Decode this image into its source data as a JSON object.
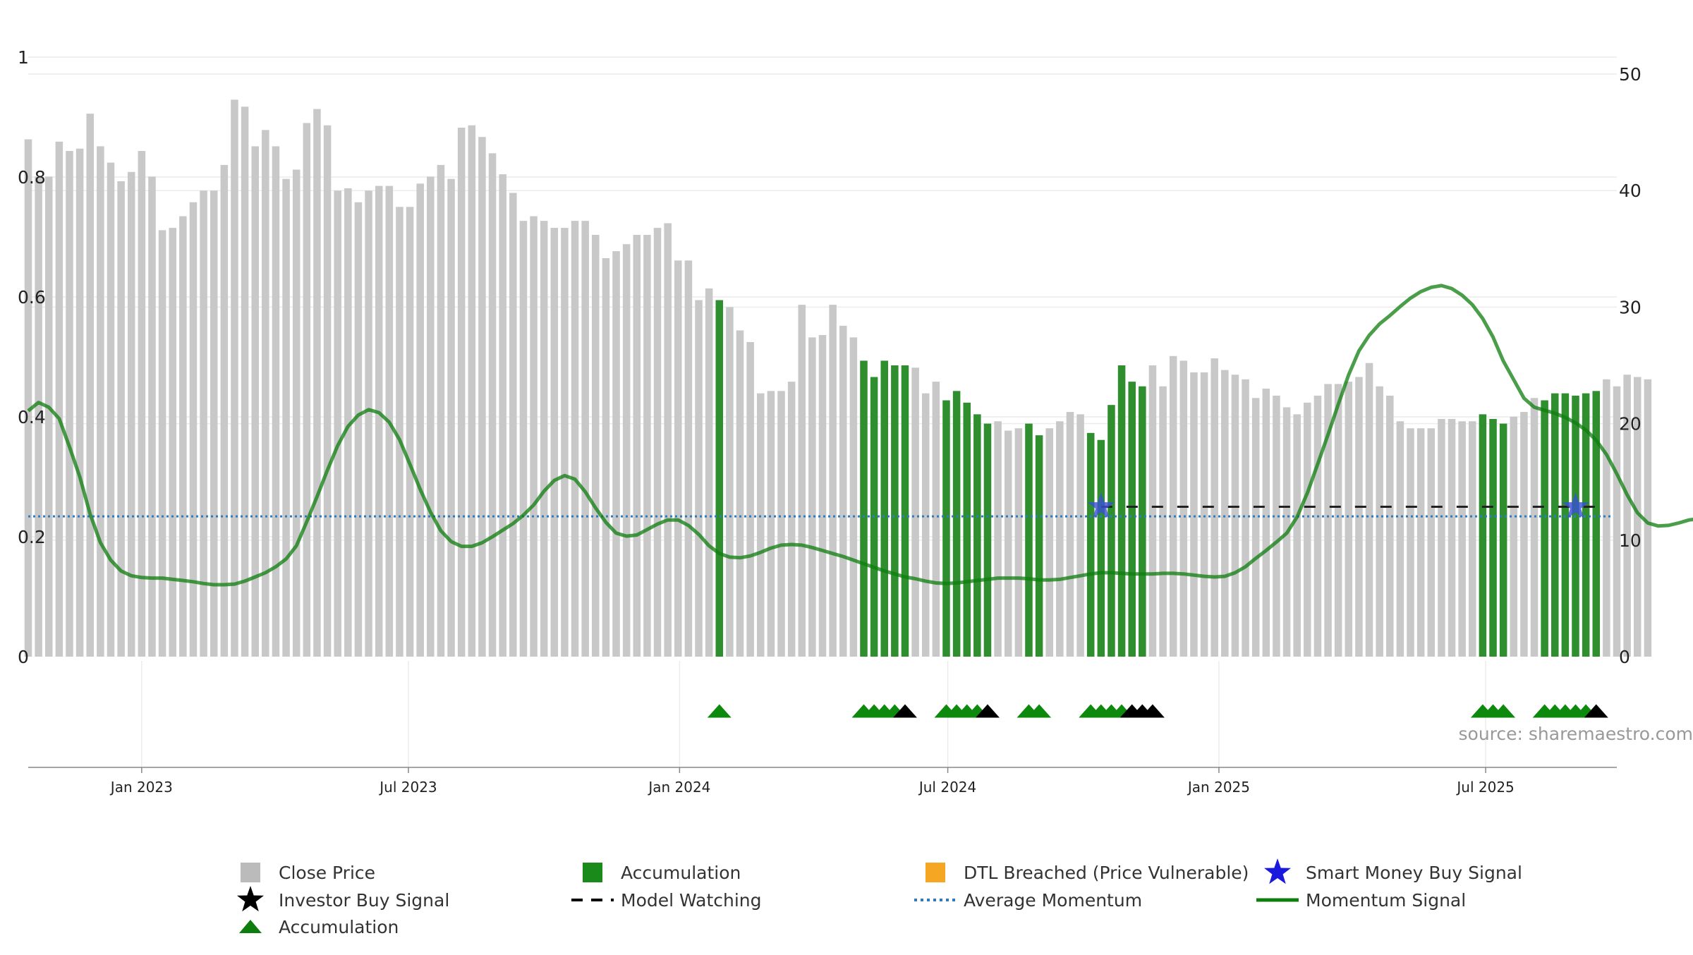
{
  "chart_data": {
    "type": "bar",
    "source_note": "source: sharemaestro.com",
    "left_axis": {
      "ylim": [
        0,
        1
      ],
      "ticks": [
        0,
        0.2,
        0.4,
        0.6,
        0.8,
        1
      ],
      "tick_labels": [
        "0",
        "0.2",
        "0.4",
        "0.6",
        "0.8",
        "1"
      ]
    },
    "right_axis": {
      "ylim": [
        0,
        50
      ],
      "ticks": [
        0,
        10,
        20,
        30,
        40,
        50
      ],
      "tick_labels": [
        "0",
        "10",
        "20",
        "30",
        "40",
        "50"
      ]
    },
    "x_ticks": [
      "Jan 2023",
      "Jul 2023",
      "Jan 2024",
      "Jul 2024",
      "Jan 2025",
      "Jul 2025"
    ],
    "x_tick_dates": [
      "2023-01-01",
      "2023-07-01",
      "2024-01-01",
      "2024-07-01",
      "2025-01-01",
      "2025-07-01"
    ],
    "x_range": [
      "2022-10-16",
      "2025-09-28"
    ],
    "bar_interval_days": 7,
    "bar_start": "2022-10-16",
    "close_price": [
      44.4,
      41.2,
      41.2,
      44.2,
      43.4,
      43.6,
      46.6,
      43.8,
      42.4,
      40.8,
      41.6,
      43.4,
      41.2,
      36.6,
      36.8,
      37.8,
      39.0,
      40.0,
      40.0,
      42.2,
      47.8,
      47.2,
      43.8,
      45.2,
      43.8,
      41.0,
      41.8,
      45.8,
      47.0,
      45.6,
      40.0,
      40.2,
      39.0,
      40.0,
      40.4,
      40.4,
      38.6,
      38.6,
      40.6,
      41.2,
      42.2,
      41.0,
      45.4,
      45.6,
      44.6,
      43.2,
      41.4,
      39.8,
      37.4,
      37.8,
      37.4,
      36.8,
      36.8,
      37.4,
      37.4,
      36.2,
      34.2,
      34.8,
      35.4,
      36.2,
      36.2,
      36.8,
      37.2,
      34.0,
      34.0,
      30.6,
      31.6,
      30.6,
      30.0,
      28.0,
      27.0,
      22.6,
      22.8,
      22.8,
      23.6,
      30.2,
      27.4,
      27.6,
      30.2,
      28.4,
      27.4,
      25.4,
      24.0,
      25.4,
      25.0,
      25.0,
      24.8,
      22.6,
      23.6,
      22.0,
      22.8,
      21.8,
      20.8,
      20.0,
      20.2,
      19.4,
      19.6,
      20.0,
      19.0,
      19.6,
      20.2,
      21.0,
      20.8,
      19.2,
      18.6,
      21.6,
      25.0,
      23.6,
      23.2,
      25.0,
      23.2,
      25.8,
      25.4,
      24.4,
      24.4,
      25.6,
      24.6,
      24.2,
      23.8,
      22.2,
      23.0,
      22.4,
      21.4,
      20.8,
      21.8,
      22.4,
      23.4,
      23.4,
      23.6,
      24.0,
      25.2,
      23.2,
      22.4,
      20.2,
      19.6,
      19.6,
      19.6,
      20.4,
      20.4,
      20.2,
      20.2,
      20.8,
      20.4,
      20.0,
      20.6,
      21.0,
      22.2,
      22.0,
      22.6,
      22.6,
      22.4,
      22.6,
      22.8,
      23.8,
      23.2,
      24.2,
      24.0,
      23.8
    ],
    "accumulation_bars": [
      67,
      81,
      82,
      83,
      84,
      85,
      89,
      90,
      91,
      92,
      93,
      97,
      98,
      103,
      104,
      105,
      106,
      107,
      108,
      141,
      142,
      143,
      147,
      148,
      149,
      150,
      151,
      152
    ],
    "momentum": [
      0.41,
      0.424,
      0.416,
      0.397,
      0.35,
      0.3,
      0.238,
      0.19,
      0.161,
      0.143,
      0.135,
      0.132,
      0.131,
      0.131,
      0.129,
      0.127,
      0.125,
      0.122,
      0.12,
      0.12,
      0.121,
      0.126,
      0.133,
      0.14,
      0.15,
      0.163,
      0.185,
      0.225,
      0.267,
      0.311,
      0.352,
      0.384,
      0.403,
      0.412,
      0.407,
      0.391,
      0.362,
      0.321,
      0.279,
      0.241,
      0.21,
      0.192,
      0.184,
      0.184,
      0.19,
      0.2,
      0.211,
      0.222,
      0.236,
      0.253,
      0.276,
      0.294,
      0.302,
      0.296,
      0.275,
      0.248,
      0.224,
      0.206,
      0.201,
      0.203,
      0.212,
      0.221,
      0.228,
      0.228,
      0.219,
      0.204,
      0.185,
      0.172,
      0.166,
      0.165,
      0.168,
      0.174,
      0.181,
      0.186,
      0.187,
      0.186,
      0.182,
      0.177,
      0.172,
      0.167,
      0.161,
      0.155,
      0.149,
      0.143,
      0.138,
      0.133,
      0.13,
      0.126,
      0.123,
      0.122,
      0.123,
      0.125,
      0.127,
      0.129,
      0.131,
      0.131,
      0.131,
      0.13,
      0.128,
      0.128,
      0.129,
      0.132,
      0.135,
      0.138,
      0.14,
      0.14,
      0.139,
      0.138,
      0.138,
      0.138,
      0.139,
      0.139,
      0.138,
      0.136,
      0.134,
      0.133,
      0.134,
      0.14,
      0.15,
      0.164,
      0.177,
      0.191,
      0.206,
      0.233,
      0.273,
      0.321,
      0.37,
      0.421,
      0.47,
      0.51,
      0.536,
      0.555,
      0.569,
      0.584,
      0.598,
      0.609,
      0.616,
      0.619,
      0.614,
      0.603,
      0.587,
      0.564,
      0.533,
      0.493,
      0.462,
      0.431,
      0.416,
      0.411,
      0.406,
      0.399,
      0.39,
      0.378,
      0.361,
      0.337,
      0.305,
      0.27,
      0.24,
      0.223,
      0.218,
      0.219,
      0.223,
      0.228,
      0.23,
      0.227,
      0.223,
      0.219,
      0.218,
      0.222,
      0.227,
      0.233,
      0.24,
      0.245,
      0.31,
      0.37,
      0.44,
      0.5,
      0.52
    ],
    "average_momentum": 0.234,
    "model_watching_level": 0.25,
    "model_watching_range": [
      "2024-10-13",
      "2025-09-21"
    ],
    "smart_money_signals": [
      {
        "date": "2024-10-13",
        "value": 0.25
      },
      {
        "date": "2025-08-31",
        "value": 0.25
      }
    ],
    "accumulation_markers": [
      67,
      81,
      82,
      83,
      84,
      89,
      90,
      91,
      92,
      97,
      98,
      103,
      104,
      105,
      106,
      141,
      142,
      143,
      147,
      148,
      149,
      150,
      151
    ],
    "investor_buy_markers": [
      85,
      93,
      107,
      108,
      109,
      152
    ],
    "legend": [
      {
        "label": "Close Price",
        "symbol": "square",
        "color": "#bbbbbb"
      },
      {
        "label": "Accumulation",
        "symbol": "square",
        "color": "#1a8a1a"
      },
      {
        "label": "DTL Breached (Price Vulnerable)",
        "symbol": "square",
        "color": "#f5a623"
      },
      {
        "label": "Smart Money Buy Signal",
        "symbol": "star",
        "color": "#1a1adc"
      },
      {
        "label": "Investor Buy Signal",
        "symbol": "star",
        "color": "#000000"
      },
      {
        "label": "Model Watching",
        "symbol": "dash",
        "color": "#000000"
      },
      {
        "label": "Average Momentum",
        "symbol": "dot",
        "color": "#2e7bbf"
      },
      {
        "label": "Momentum Signal",
        "symbol": "line",
        "color": "#0d7d0d"
      },
      {
        "label": "Accumulation",
        "symbol": "triangle",
        "color": "#0d7d0d"
      }
    ],
    "colors": {
      "close_bar": "#c8c8c8",
      "accum_bar": "#2f8f2f",
      "momentum_line": "#0d7d0d",
      "avg_momentum": "#2e7bbf",
      "model_watching": "#222222",
      "smart_money": "#3a4fd6",
      "triangle": "#0d8a0d",
      "investor_buy": "#000000",
      "grid": "#ececec",
      "axis": "#888888"
    }
  }
}
